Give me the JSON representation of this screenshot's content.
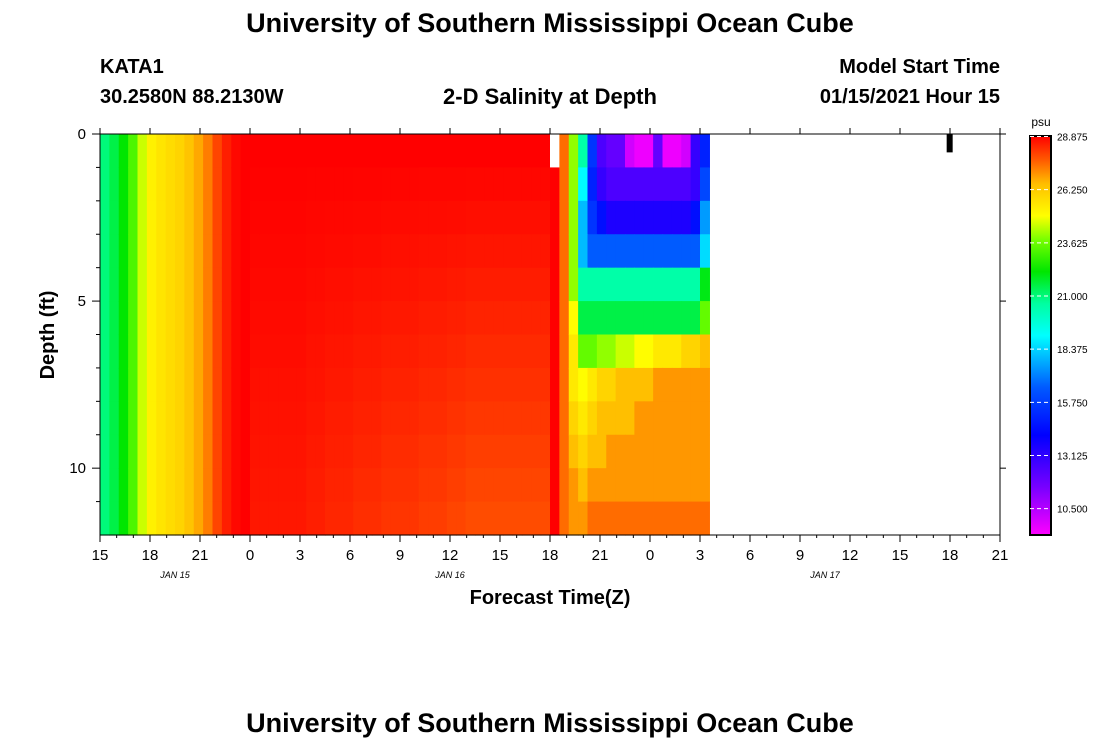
{
  "page": {
    "title_top": "University of Southern Mississippi Ocean Cube",
    "title_bottom": "University of Southern Mississippi Ocean Cube",
    "station": "KATA1",
    "coords": "30.2580N 88.2130W",
    "plot_title": "2-D Salinity at Depth",
    "model_label": "Model Start Time",
    "model_time": "01/15/2021 Hour 15"
  },
  "chart_data": {
    "type": "heatmap",
    "title": "2-D Salinity at Depth",
    "xlabel": "Forecast Time(Z)",
    "ylabel": "Depth (ft)",
    "x_tick_labels": [
      "15",
      "18",
      "21",
      "0",
      "3",
      "6",
      "9",
      "12",
      "15",
      "18",
      "21",
      "0",
      "3",
      "6",
      "9",
      "12",
      "15",
      "18",
      "21"
    ],
    "date_labels": [
      {
        "text": "JAN 15",
        "at_hour": 4.5
      },
      {
        "text": "JAN 16",
        "at_hour": 21
      },
      {
        "text": "JAN 17",
        "at_hour": 43.5
      }
    ],
    "x_hours_range": [
      0,
      54
    ],
    "y_tick_labels": [
      "0",
      "5",
      "10"
    ],
    "ylim": [
      0,
      12
    ],
    "y_inverted": true,
    "colorbar": {
      "unit": "psu",
      "ticks": [
        "28.875",
        "26.250",
        "23.625",
        "21.000",
        "18.375",
        "15.750",
        "13.125",
        "10.500"
      ],
      "range": [
        9.2,
        28.9
      ]
    },
    "upper_water_profile_psu": [
      21,
      21.5,
      22.2,
      23.2,
      24.5,
      25.3,
      25.6,
      25.8,
      26,
      26.4,
      26.8,
      27.3,
      28,
      28.5,
      28.8,
      28.9,
      28.9,
      28.9,
      28.9,
      28.9,
      28.9,
      28.9,
      28.9,
      28.9,
      28.9,
      28.9,
      28.9,
      28.9,
      28.9,
      28.9,
      28.9,
      28.9,
      28.9,
      28.9,
      28.9,
      28.9,
      28.9,
      28.9,
      28.9,
      28.9,
      28.9,
      28.9,
      28.9,
      28.9,
      28.9,
      28.9,
      28.9,
      28.9
    ],
    "upper_water_bottom_drift_psu": [
      0,
      0,
      0,
      0,
      0,
      0,
      0,
      0,
      0,
      0,
      0,
      0,
      0,
      0,
      0,
      0,
      0.3,
      0.3,
      0.3,
      0.3,
      0.3,
      0.3,
      0.4,
      0.4,
      0.5,
      0.5,
      0.5,
      0.6,
      0.6,
      0.6,
      0.7,
      0.7,
      0.7,
      0.7,
      0.8,
      0.8,
      0.8,
      0.9,
      0.9,
      1,
      1,
      1,
      1,
      1,
      1,
      1,
      1,
      1
    ],
    "transition_columns_psu": [
      [
        29.5,
        29.5,
        29.5,
        29.5,
        29.5,
        29.5,
        29.5,
        29.5,
        29.5,
        29.5,
        29.5,
        29.5
      ],
      [
        27.5,
        27.5,
        27.5,
        27.5,
        27.5,
        27.5,
        27.5,
        27.5,
        27.5,
        27.5,
        27.5,
        27.5
      ],
      [
        24.0,
        24.0,
        24.0,
        24.0,
        24.0,
        25.0,
        25.5,
        25.5,
        26.0,
        26.5,
        27.0,
        27.0
      ]
    ],
    "front_rows_psu": [
      [
        20.5,
        15.5,
        12.5,
        12.0,
        12.0,
        10.0,
        9.5,
        9.5,
        12.0,
        9.5,
        9.5,
        10.0,
        13.0,
        15.0
      ],
      [
        19.0,
        15.0,
        13.0,
        12.5,
        12.5,
        12.5,
        12.5,
        12.5,
        12.5,
        12.5,
        12.5,
        12.5,
        13.0,
        16.0
      ],
      [
        18.0,
        15.5,
        14.5,
        13.5,
        13.5,
        13.5,
        13.5,
        13.5,
        13.5,
        13.5,
        13.5,
        13.5,
        14.5,
        17.5
      ],
      [
        18.0,
        16.5,
        16.5,
        16.5,
        16.5,
        16.5,
        16.5,
        16.5,
        16.5,
        16.5,
        16.5,
        16.5,
        16.5,
        18.5
      ],
      [
        20.5,
        20.5,
        20.5,
        20.5,
        20.5,
        20.5,
        20.5,
        20.5,
        20.5,
        20.5,
        20.5,
        20.5,
        20.5,
        22.0
      ],
      [
        21.5,
        21.5,
        21.5,
        21.5,
        21.5,
        21.5,
        21.5,
        21.5,
        21.5,
        21.5,
        21.5,
        21.5,
        21.5,
        23.5
      ],
      [
        23.5,
        23.5,
        24.0,
        24.0,
        24.5,
        24.5,
        25.0,
        25.0,
        25.5,
        25.5,
        25.5,
        26.0,
        26.0,
        26.5
      ],
      [
        25.0,
        25.5,
        26.0,
        26.0,
        26.5,
        26.5,
        26.5,
        26.5,
        27.0,
        27.0,
        27.0,
        27.0,
        27.0,
        27.0
      ],
      [
        25.5,
        26.0,
        26.5,
        26.5,
        26.5,
        26.5,
        27.0,
        27.0,
        27.0,
        27.0,
        27.0,
        27.0,
        27.0,
        27.0
      ],
      [
        26.0,
        26.5,
        26.5,
        27.0,
        27.0,
        27.0,
        27.0,
        27.0,
        27.0,
        27.0,
        27.0,
        27.0,
        27.0,
        27.0
      ],
      [
        26.5,
        27.0,
        27.0,
        27.0,
        27.0,
        27.0,
        27.0,
        27.0,
        27.0,
        27.0,
        27.0,
        27.0,
        27.0,
        27.0
      ],
      [
        27.0,
        27.5,
        27.5,
        27.5,
        27.5,
        27.5,
        27.5,
        27.5,
        27.5,
        27.5,
        27.5,
        27.5,
        27.5,
        27.5
      ]
    ]
  }
}
